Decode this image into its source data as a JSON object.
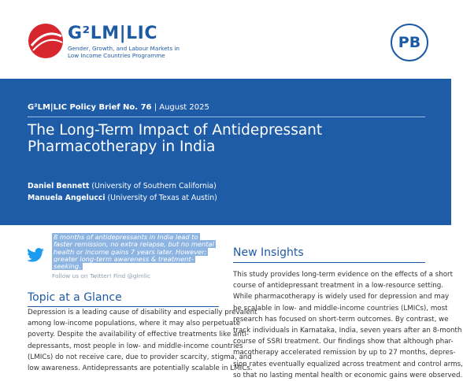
{
  "header": {
    "logo_text": "G²LM|LIC",
    "logo_subtitle": [
      "Gender, Growth, and Labour Markets in",
      "Low Income Countries Programme"
    ],
    "badge": "PB"
  },
  "banner": {
    "series": "G²LM|LIC Policy Brief No. 76",
    "date": "| August 2025",
    "title": [
      "The Long-Term Impact of Antidepressant",
      "Pharmacotherapy in India"
    ],
    "authors": [
      {
        "name": "Daniel Bennett",
        "affiliation": "(University of Southern California)"
      },
      {
        "name": "Manuela Angelucci",
        "affiliation": "(University of Texas at Austin)"
      }
    ]
  },
  "tweet": {
    "lines": [
      "8 months of antidepressants in India lead to",
      "faster remission, no extra relapse, but no mental",
      "health or income gains 7 years later. However:",
      "greater long-term awareness & treatment-",
      "seeking."
    ],
    "follow": "Follow us on Twitter! Find @glmlic"
  },
  "topic": {
    "heading": "Topic at a Glance",
    "lines": [
      "Depression is a leading cause of disability and especially prevalent",
      "among low-income populations, where it may also perpetuate",
      "poverty. Despite the availability of effective treatments like anti-",
      "depressants, most people in low- and middle-income countries",
      "(LMICs) do not receive care, due to provider scarcity, stigma, and",
      "low awareness. Antidepressants are potentially scalable in LMICs."
    ]
  },
  "insights": {
    "heading": "New Insights",
    "lines": [
      "This study provides long-term evidence on the effects of a short",
      "course of antidepressant treatment in a low-resource setting.",
      "While pharmacotherapy is widely used for depression and may",
      "be scalable in low- and middle-income countries (LMICs), most",
      "research has focused on short-term outcomes. By contrast, we",
      "track individuals in Karnataka, India, seven years after an 8-month",
      "course of SSRI treatment. Our findings show that although phar-",
      "macotherapy accelerated remission by up to 27 months, depres-",
      "sion rates eventually equalized across treatment and control arms,",
      "so that no lasting mental health or economic gains were observed."
    ]
  }
}
